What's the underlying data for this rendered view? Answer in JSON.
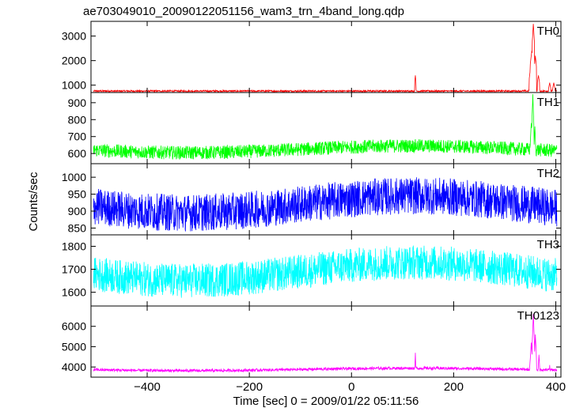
{
  "title": "ae703049010_20090122051156_wam3_trn_4band_long.qdp",
  "chart_data": {
    "type": "line",
    "title": "ae703049010_20090122051156_wam3_trn_4band_long.qdp",
    "xlabel": "Time [sec] 0 = 2009/01/22 05:11:56",
    "ylabel": "Counts/sec",
    "xlim": [
      -510,
      410
    ],
    "x_ticks": [
      -400,
      -200,
      0,
      200,
      400
    ],
    "x_tick_labels": [
      "−400",
      "−200",
      "0",
      "200",
      "400"
    ],
    "panels": [
      {
        "name": "TH0",
        "color": "#ff0000",
        "ylim": [
          700,
          3600
        ],
        "y_ticks": [
          1000,
          2000,
          3000
        ],
        "y_tick_labels": [
          "1000",
          "2000",
          "3000"
        ],
        "baseline": 760,
        "noise": 35,
        "wave": 0,
        "features": [
          {
            "t": 125,
            "peak": 1400,
            "width": 1
          },
          {
            "t": 350,
            "peak": 1600,
            "width": 2
          },
          {
            "t": 353,
            "peak": 2400,
            "width": 3
          },
          {
            "t": 356,
            "peak": 3500,
            "width": 2
          },
          {
            "t": 360,
            "peak": 2200,
            "width": 2
          },
          {
            "t": 366,
            "peak": 1400,
            "width": 2
          },
          {
            "t": 388,
            "peak": 1100,
            "width": 2
          },
          {
            "t": 396,
            "peak": 1100,
            "width": 2
          }
        ]
      },
      {
        "name": "TH1",
        "color": "#00ff00",
        "ylim": [
          540,
          960
        ],
        "y_ticks": [
          600,
          700,
          800,
          900
        ],
        "y_tick_labels": [
          "600",
          "700",
          "800",
          "900"
        ],
        "baseline": 625,
        "noise": 40,
        "wave": 20,
        "features": [
          {
            "t": 352,
            "peak": 780,
            "width": 3
          },
          {
            "t": 355,
            "peak": 950,
            "width": 2
          },
          {
            "t": 359,
            "peak": 760,
            "width": 2
          }
        ]
      },
      {
        "name": "TH2",
        "color": "#0000ff",
        "ylim": [
          830,
          1040
        ],
        "y_ticks": [
          850,
          900,
          950,
          1000
        ],
        "y_tick_labels": [
          "850",
          "900",
          "950",
          "1000"
        ],
        "baseline": 920,
        "noise": 55,
        "wave": 25,
        "features": []
      },
      {
        "name": "TH3",
        "color": "#00ffff",
        "ylim": [
          1540,
          1850
        ],
        "y_ticks": [
          1600,
          1700,
          1800
        ],
        "y_tick_labels": [
          "1600",
          "1700",
          "1800"
        ],
        "baseline": 1690,
        "noise": 75,
        "wave": 40,
        "features": []
      },
      {
        "name": "TH0123",
        "color": "#ff00ff",
        "ylim": [
          3500,
          7000
        ],
        "y_ticks": [
          4000,
          5000,
          6000
        ],
        "y_tick_labels": [
          "4000",
          "5000",
          "6000"
        ],
        "baseline": 3880,
        "noise": 70,
        "wave": 60,
        "features": [
          {
            "t": 125,
            "peak": 4700,
            "width": 1
          },
          {
            "t": 352,
            "peak": 5200,
            "width": 3
          },
          {
            "t": 356,
            "peak": 6600,
            "width": 2
          },
          {
            "t": 360,
            "peak": 5600,
            "width": 2
          },
          {
            "t": 367,
            "peak": 4600,
            "width": 2
          },
          {
            "t": 388,
            "peak": 4100,
            "width": 2
          }
        ]
      }
    ],
    "grid": false,
    "legend": "panel labels at top-right of each panel"
  }
}
